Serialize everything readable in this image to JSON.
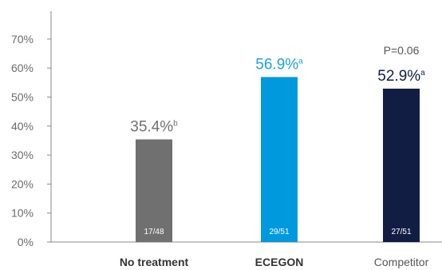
{
  "chart_data": {
    "type": "bar",
    "yticks": [
      "0%",
      "10%",
      "20%",
      "30%",
      "40%",
      "50%",
      "60%",
      "70%"
    ],
    "ylim": [
      0,
      78
    ],
    "grid": false,
    "categories": [
      "No treatment",
      "ECEGON",
      "Competitor"
    ],
    "values": [
      35.4,
      56.9,
      52.9
    ],
    "value_labels": [
      "35.4%",
      "56.9%",
      "52.9%"
    ],
    "superscripts": [
      "b",
      "a",
      "a"
    ],
    "in_bar_labels": [
      "17/48",
      "29/51",
      "27/51"
    ],
    "annotations": [
      {
        "text": "P=0.06",
        "category": "Competitor"
      }
    ],
    "colors": {
      "bars": [
        "#707070",
        "#0099dd",
        "#121d44"
      ],
      "value_labels": [
        "#707070",
        "#1ea0e0",
        "#121d44"
      ],
      "category_labels": [
        "#333333",
        "#333333",
        "#555555"
      ],
      "axis": "#888888"
    },
    "category_label_weights": [
      "bold",
      "bold",
      "normal"
    ]
  }
}
